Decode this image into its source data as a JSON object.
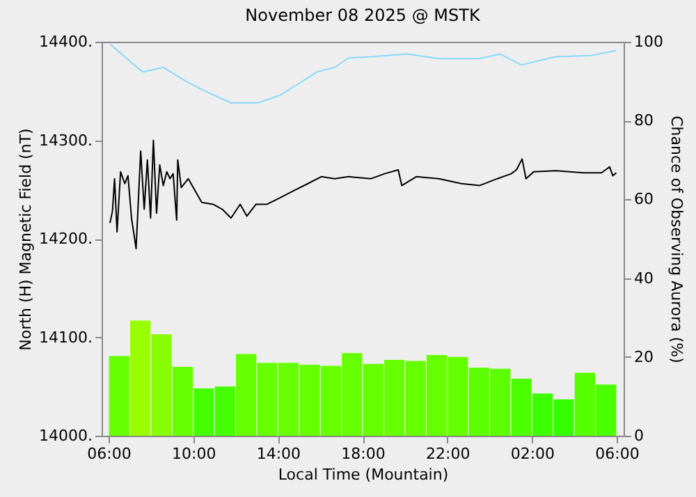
{
  "chart_data": {
    "type": "bar",
    "title": "November 08 2025 @ MSTK",
    "xlabel": "Local Time (Mountain)",
    "ylabel": "North (H) Magnetic Field (nT)",
    "y2label": "Chance of Observing Aurora (%)",
    "xlim": [
      "2025-11-08T06:00",
      "2025-11-09T06:00"
    ],
    "xticks": [
      {
        "value": "2025-11-08T06:00",
        "label": "06:00"
      },
      {
        "value": "2025-11-08T10:00",
        "label": "10:00"
      },
      {
        "value": "2025-11-08T14:00",
        "label": "14:00"
      },
      {
        "value": "2025-11-08T18:00",
        "label": "18:00"
      },
      {
        "value": "2025-11-08T22:00",
        "label": "22:00"
      },
      {
        "value": "2025-11-09T02:00",
        "label": "02:00"
      },
      {
        "value": "2025-11-09T06:00",
        "label": "06:00"
      }
    ],
    "ylim": [
      14000,
      14400
    ],
    "yticks": [
      {
        "value": 14000,
        "label": "14000."
      },
      {
        "value": 14100,
        "label": "14100."
      },
      {
        "value": 14200,
        "label": "14200."
      },
      {
        "value": 14300,
        "label": "14300."
      },
      {
        "value": 14400,
        "label": "14400."
      }
    ],
    "y2lim": [
      0,
      100
    ],
    "y2ticks": [
      0,
      20,
      40,
      60,
      80,
      100
    ],
    "marker": "none",
    "line_style": "solid",
    "series": [
      {
        "x": [
          "2025-11-08T06:30",
          "2025-11-08T07:30",
          "2025-11-08T08:30",
          "2025-11-08T09:30",
          "2025-11-08T10:30",
          "2025-11-08T11:30",
          "2025-11-08T12:30",
          "2025-11-08T13:30",
          "2025-11-08T14:30",
          "2025-11-08T15:30",
          "2025-11-08T16:30",
          "2025-11-08T17:30",
          "2025-11-08T18:30",
          "2025-11-08T19:30",
          "2025-11-08T20:30",
          "2025-11-08T21:30",
          "2025-11-08T22:30",
          "2025-11-08T23:30",
          "2025-11-09T00:30",
          "2025-11-09T01:30",
          "2025-11-09T02:30",
          "2025-11-09T03:30",
          "2025-11-09T04:30",
          "2025-11-09T05:30"
        ],
        "values": [
          14081,
          14117,
          14103,
          14070,
          14048,
          14050,
          14083,
          14074,
          14074,
          14072,
          14071,
          14084,
          14073,
          14077,
          14076,
          14082,
          14080,
          14069,
          14068,
          14058,
          14043,
          14037,
          14064,
          14052
        ],
        "colors": [
          "#66ff00",
          "#99ff00",
          "#88ff00",
          "#66ff00",
          "#44ff00",
          "#44ff00",
          "#66ff00",
          "#66ff00",
          "#66ff00",
          "#66ff00",
          "#66ff00",
          "#66ff00",
          "#66ff00",
          "#66ff00",
          "#66ff00",
          "#66ff00",
          "#66ff00",
          "#5cff00",
          "#5cff00",
          "#4cff00",
          "#3cff00",
          "#33ff00",
          "#55ff00",
          "#4cff00"
        ]
      },
      {
        "type": "line",
        "color": "#000000",
        "x": [
          "2025-11-08T06:04",
          "2025-11-08T06:11",
          "2025-11-08T06:17",
          "2025-11-08T06:24",
          "2025-11-08T06:34",
          "2025-11-08T06:46",
          "2025-11-08T06:55",
          "2025-11-08T07:05",
          "2025-11-08T07:18",
          "2025-11-08T07:31",
          "2025-11-08T07:41",
          "2025-11-08T07:50",
          "2025-11-08T07:59",
          "2025-11-08T08:07",
          "2025-11-08T08:16",
          "2025-11-08T08:25",
          "2025-11-08T08:35",
          "2025-11-08T08:45",
          "2025-11-08T08:54",
          "2025-11-08T09:03",
          "2025-11-08T09:13",
          "2025-11-08T09:16",
          "2025-11-08T09:26",
          "2025-11-08T09:46",
          "2025-11-08T10:05",
          "2025-11-08T10:24",
          "2025-11-08T10:56",
          "2025-11-08T11:22",
          "2025-11-08T11:47",
          "2025-11-08T12:13",
          "2025-11-08T12:32",
          "2025-11-08T12:58",
          "2025-11-08T13:29",
          "2025-11-08T14:08",
          "2025-11-08T14:46",
          "2025-11-08T15:25",
          "2025-11-08T16:03",
          "2025-11-08T16:41",
          "2025-11-08T17:20",
          "2025-11-08T18:24",
          "2025-11-08T19:02",
          "2025-11-08T19:41",
          "2025-11-08T19:51",
          "2025-11-08T20:32",
          "2025-11-08T21:36",
          "2025-11-08T22:40",
          "2025-11-08T23:31",
          "2025-11-09T00:22",
          "2025-11-09T01:01",
          "2025-11-09T01:16",
          "2025-11-09T01:32",
          "2025-11-09T01:43",
          "2025-11-09T02:05",
          "2025-11-09T03:08",
          "2025-11-09T04:25",
          "2025-11-09T05:17",
          "2025-11-09T05:40",
          "2025-11-09T05:49",
          "2025-11-09T05:59"
        ],
        "values": [
          14216,
          14228,
          14261,
          14207,
          14268,
          14256,
          14264,
          14221,
          14190,
          14289,
          14230,
          14280,
          14221,
          14300,
          14226,
          14275,
          14254,
          14268,
          14261,
          14266,
          14219,
          14280,
          14252,
          14261,
          14249,
          14237,
          14235,
          14230,
          14221,
          14235,
          14223,
          14235,
          14235,
          14242,
          14249,
          14256,
          14263,
          14261,
          14263,
          14261,
          14266,
          14270,
          14254,
          14263,
          14261,
          14256,
          14254,
          14261,
          14266,
          14270,
          14281,
          14261,
          14268,
          14269,
          14267,
          14267,
          14273,
          14264,
          14267
        ]
      },
      {
        "type": "line",
        "axis": "y2",
        "color": "#88d8f8",
        "x": [
          "2025-11-08T06:04",
          "2025-11-08T07:37",
          "2025-11-08T08:35",
          "2025-11-08T09:39",
          "2025-11-08T10:30",
          "2025-11-08T11:47",
          "2025-11-08T13:04",
          "2025-11-08T14:08",
          "2025-11-08T14:59",
          "2025-11-08T15:50",
          "2025-11-08T16:41",
          "2025-11-08T17:20",
          "2025-11-08T18:24",
          "2025-11-08T20:06",
          "2025-11-08T21:36",
          "2025-11-08T23:30",
          "2025-11-09T00:30",
          "2025-11-09T01:30",
          "2025-11-09T03:06",
          "2025-11-09T04:48",
          "2025-11-09T05:59"
        ],
        "values": [
          99.4,
          92.3,
          93.5,
          90.0,
          87.6,
          84.5,
          84.5,
          86.5,
          89.4,
          92.3,
          93.5,
          95.9,
          96.2,
          96.9,
          95.7,
          95.7,
          96.9,
          94.1,
          96.2,
          96.5,
          97.8
        ]
      }
    ]
  }
}
